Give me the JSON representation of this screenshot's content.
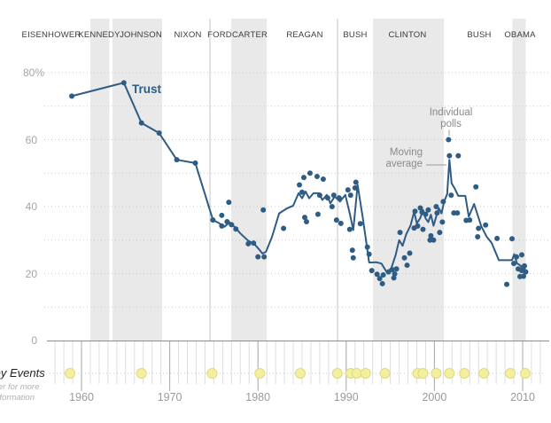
{
  "presidents": [
    "EISENHOWER",
    "KENNEDY",
    "JOHNSON",
    "NIXON",
    "FORD",
    "CARTER",
    "REAGAN",
    "BUSH",
    "CLINTON",
    "BUSH",
    "OBAMA"
  ],
  "annotations": {
    "individual_polls": [
      "Individual",
      "polls"
    ],
    "moving_average": [
      "Moving",
      "average"
    ]
  },
  "events": {
    "label": "Key Events",
    "note_lines": [
      "Hover for more",
      "information"
    ],
    "years": [
      1958.7,
      1966.8,
      1974.8,
      1980.2,
      1984.8,
      1989.0,
      1990.5,
      1991.2,
      1992.2,
      1994.4,
      1998.1,
      1998.7,
      2000.2,
      2001.7,
      2003.4,
      2005.6,
      2008.6,
      2010.3
    ]
  },
  "colors": {
    "trust_blue": "#2e5c84",
    "band_gray": "#e9e9e9",
    "gridline": "#c9c9c9",
    "baseline": "#8c8c8c",
    "year_tick": "#dedede",
    "decade_tick": "#a9a9a9",
    "event_fill": "#f3ef9e",
    "event_stroke": "#ddd985",
    "pointer_gray": "#9a9a9a"
  },
  "chart_data": {
    "type": "line+scatter",
    "line_label": "Trust",
    "x_axis": {
      "range": [
        1956.2,
        2011.2
      ],
      "decade_ticks": [
        1960,
        1970,
        1980,
        1990,
        2000,
        2010
      ],
      "yearly_ticks": true
    },
    "y_axis": {
      "range": [
        0,
        84
      ],
      "unit": "%",
      "gridlines": [
        80,
        70,
        60,
        50,
        40,
        30,
        20,
        10
      ],
      "ticks": [
        {
          "value": 80,
          "label": "80%"
        },
        {
          "value": 60,
          "label": "60"
        },
        {
          "value": 40,
          "label": "40"
        },
        {
          "value": 20,
          "label": "20"
        },
        {
          "value": 0,
          "label": "0"
        }
      ]
    },
    "series": [
      {
        "name": "Moving average",
        "type": "line",
        "points": [
          [
            1958.9,
            73
          ],
          [
            1964.8,
            77
          ],
          [
            1966.8,
            65
          ],
          [
            1968.8,
            62
          ],
          [
            1970.8,
            54
          ],
          [
            1972.9,
            53
          ],
          [
            1974.9,
            36
          ],
          [
            1975.5,
            35.2
          ],
          [
            1976.2,
            34
          ],
          [
            1976.8,
            35.3
          ],
          [
            1977.4,
            33.8
          ],
          [
            1978,
            32
          ],
          [
            1978.9,
            29.8
          ],
          [
            1979.6,
            28.8
          ],
          [
            1980.1,
            27.3
          ],
          [
            1980.5,
            26
          ],
          [
            1980.9,
            26.5
          ],
          [
            1981.6,
            31
          ],
          [
            1982.4,
            38
          ],
          [
            1983.3,
            39.5
          ],
          [
            1984,
            40.3
          ],
          [
            1984.6,
            44
          ],
          [
            1985,
            42.5
          ],
          [
            1985.4,
            44.5
          ],
          [
            1985.8,
            42.5
          ],
          [
            1986.3,
            44
          ],
          [
            1986.9,
            44
          ],
          [
            1987.3,
            42
          ],
          [
            1987.8,
            43.5
          ],
          [
            1988.2,
            41
          ],
          [
            1988.7,
            43
          ],
          [
            1989.3,
            41.5
          ],
          [
            1989.9,
            43.5
          ],
          [
            1990.4,
            38
          ],
          [
            1990.8,
            33
          ],
          [
            1991.3,
            46.5
          ],
          [
            1991.9,
            36.4
          ],
          [
            1992.6,
            23.3
          ],
          [
            1993.4,
            23.4
          ],
          [
            1994,
            23
          ],
          [
            1994.6,
            20.4
          ],
          [
            1995.1,
            21.5
          ],
          [
            1995.6,
            25.5
          ],
          [
            1996,
            30
          ],
          [
            1996.4,
            28.3
          ],
          [
            1996.8,
            31.7
          ],
          [
            1997.3,
            34.4
          ],
          [
            1997.7,
            38.5
          ],
          [
            1998,
            35
          ],
          [
            1998.4,
            36.6
          ],
          [
            1998.7,
            39
          ],
          [
            1999,
            36.5
          ],
          [
            1999.3,
            35.4
          ],
          [
            1999.6,
            37.6
          ],
          [
            1999.9,
            34.3
          ],
          [
            2000.2,
            37
          ],
          [
            2000.5,
            39.5
          ],
          [
            2000.8,
            38
          ],
          [
            2001.1,
            41.5
          ],
          [
            2001.45,
            43.8
          ],
          [
            2001.7,
            54
          ],
          [
            2001.95,
            47
          ],
          [
            2002.3,
            45.4
          ],
          [
            2002.7,
            43.2
          ],
          [
            2003.5,
            43.2
          ],
          [
            2003.9,
            37
          ],
          [
            2004.5,
            40.8
          ],
          [
            2005.3,
            34.2
          ],
          [
            2005.9,
            31.1
          ],
          [
            2006.5,
            29.1
          ],
          [
            2007.3,
            24
          ],
          [
            2008.8,
            24
          ],
          [
            2009.05,
            25.8
          ],
          [
            2009.35,
            23.1
          ],
          [
            2009.8,
            22.3
          ],
          [
            2010,
            20.9
          ],
          [
            2010.2,
            21.8
          ],
          [
            2010.35,
            20.5
          ]
        ]
      },
      {
        "name": "Individual polls",
        "type": "scatter",
        "points": [
          [
            1958.9,
            73
          ],
          [
            1964.8,
            77
          ],
          [
            1966.8,
            65
          ],
          [
            1968.8,
            62
          ],
          [
            1970.8,
            54
          ],
          [
            1972.9,
            53
          ],
          [
            1974.9,
            36
          ],
          [
            1975.9,
            37.4
          ],
          [
            1975.9,
            34.2
          ],
          [
            1976.5,
            35.5
          ],
          [
            1976.7,
            41.3
          ],
          [
            1977,
            34.6
          ],
          [
            1977.5,
            33.3
          ],
          [
            1978.9,
            28.9
          ],
          [
            1979.5,
            29.1
          ],
          [
            1980,
            25
          ],
          [
            1980.7,
            25
          ],
          [
            1980.6,
            39
          ],
          [
            1982.9,
            33.5
          ],
          [
            1984.7,
            46.5
          ],
          [
            1985,
            44.3
          ],
          [
            1985.2,
            48.7
          ],
          [
            1985.3,
            36.8
          ],
          [
            1985.5,
            35.5
          ],
          [
            1985.9,
            50
          ],
          [
            1986.7,
            49
          ],
          [
            1986.8,
            37.7
          ],
          [
            1987,
            43.4
          ],
          [
            1987.4,
            48.2
          ],
          [
            1987.9,
            42.6
          ],
          [
            1988.4,
            40
          ],
          [
            1988.6,
            43.4
          ],
          [
            1988.9,
            36
          ],
          [
            1989.2,
            42.6
          ],
          [
            1989.4,
            35
          ],
          [
            1990.2,
            45
          ],
          [
            1990.5,
            43.4
          ],
          [
            1990.4,
            33.2
          ],
          [
            1990.7,
            27
          ],
          [
            1990.8,
            24.7
          ],
          [
            1991,
            45.6
          ],
          [
            1991.1,
            47.3
          ],
          [
            1991.6,
            34.9
          ],
          [
            1992.4,
            27.9
          ],
          [
            1992.6,
            25.8
          ],
          [
            1992.9,
            20.9
          ],
          [
            1993.5,
            19.8
          ],
          [
            1993.8,
            18.5
          ],
          [
            1994.1,
            17
          ],
          [
            1994.2,
            19.6
          ],
          [
            1994.8,
            20.5
          ],
          [
            1995.2,
            21.2
          ],
          [
            1995.4,
            18.7
          ],
          [
            1995.5,
            19.9
          ],
          [
            1995.7,
            21.4
          ],
          [
            1996.1,
            32.3
          ],
          [
            1996.6,
            24.7
          ],
          [
            1996.9,
            22.5
          ],
          [
            1997.2,
            26.1
          ],
          [
            1997.7,
            33.6
          ],
          [
            1997.8,
            38.6
          ],
          [
            1998.1,
            34.2
          ],
          [
            1998.4,
            39.6
          ],
          [
            1998.6,
            38.3
          ],
          [
            1998.7,
            33.2
          ],
          [
            1999,
            37.7
          ],
          [
            1999.3,
            39
          ],
          [
            1999.5,
            30
          ],
          [
            1999.6,
            31.3
          ],
          [
            1999.9,
            30
          ],
          [
            2000.2,
            40
          ],
          [
            2000.3,
            38.1
          ],
          [
            2000.6,
            32.3
          ],
          [
            2000.9,
            35.4
          ],
          [
            2001,
            41.5
          ],
          [
            2001.6,
            60
          ],
          [
            2001.7,
            55.2
          ],
          [
            2002.7,
            55.2
          ],
          [
            2001.9,
            43.4
          ],
          [
            2002.2,
            38.1
          ],
          [
            2002.6,
            38.1
          ],
          [
            2003.6,
            35.9
          ],
          [
            2004,
            36
          ],
          [
            2004.7,
            45.9
          ],
          [
            2004.9,
            31
          ],
          [
            2005,
            33.5
          ],
          [
            2005.8,
            34.5
          ],
          [
            2007.1,
            30.5
          ],
          [
            2008.8,
            30.4
          ],
          [
            2008.2,
            16.8
          ],
          [
            2009,
            23
          ],
          [
            2009.3,
            25
          ],
          [
            2009.5,
            21.4
          ],
          [
            2009.7,
            19.1
          ],
          [
            2009.9,
            25.6
          ],
          [
            2009.9,
            20.9
          ],
          [
            2010.1,
            19.2
          ],
          [
            2010.2,
            22.3
          ],
          [
            2010.35,
            20.5
          ]
        ]
      }
    ]
  }
}
